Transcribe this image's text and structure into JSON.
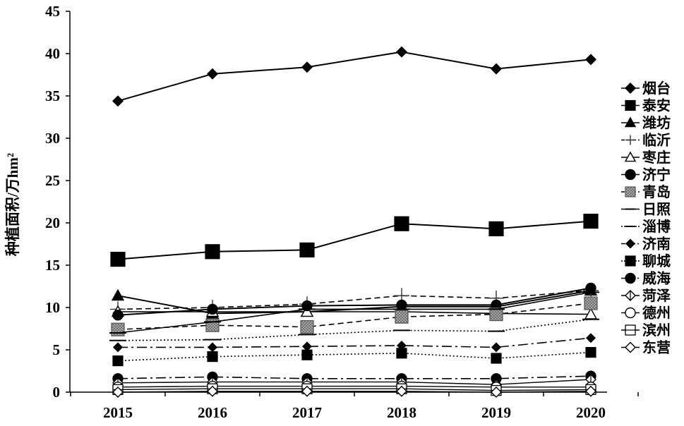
{
  "chart_data": {
    "type": "line",
    "ylabel": "种植面积/万hm²",
    "xlabel": "",
    "ylim": [
      0,
      45
    ],
    "yticks": [
      0,
      5,
      10,
      15,
      20,
      25,
      30,
      35,
      40,
      45
    ],
    "x": [
      "2015",
      "2016",
      "2017",
      "2018",
      "2019",
      "2020"
    ],
    "grid": false,
    "legend_position": "right",
    "series": [
      {
        "name": "烟台",
        "values": [
          34.4,
          37.6,
          38.4,
          40.2,
          38.2,
          39.3
        ],
        "marker": "diamond",
        "marker_fill": "#000000",
        "marker_size": 7,
        "dash": "solid",
        "stroke_width": 2
      },
      {
        "name": "泰安",
        "values": [
          15.7,
          16.6,
          16.8,
          19.9,
          19.3,
          20.2
        ],
        "marker": "square",
        "marker_fill": "#000000",
        "marker_size": 10,
        "dash": "solid",
        "stroke_width": 2
      },
      {
        "name": "潍坊",
        "values": [
          11.4,
          9.3,
          9.5,
          10.1,
          10.1,
          12.0
        ],
        "marker": "triangle",
        "marker_fill": "#000000",
        "marker_size": 8,
        "dash": "solid",
        "stroke_width": 2
      },
      {
        "name": "临沂",
        "values": [
          9.8,
          10.0,
          10.4,
          11.4,
          11.1,
          12.0
        ],
        "marker": "plus",
        "marker_fill": "#000000",
        "marker_size": 11,
        "dash": "dash",
        "stroke_width": 1.6
      },
      {
        "name": "枣庄",
        "values": [
          9.5,
          9.5,
          9.5,
          9.5,
          9.3,
          9.2
        ],
        "marker": "triangle-open",
        "marker_fill": "#ffffff",
        "marker_size": 8,
        "dash": "solid",
        "stroke_width": 1.6
      },
      {
        "name": "济宁",
        "values": [
          9.1,
          9.8,
          10.2,
          10.3,
          10.3,
          12.3
        ],
        "marker": "circle",
        "marker_fill": "#000000",
        "marker_size": 7,
        "dash": "solid",
        "stroke_width": 2
      },
      {
        "name": "青岛",
        "values": [
          7.4,
          7.9,
          7.7,
          8.9,
          9.2,
          10.5
        ],
        "marker": "square-hatch",
        "marker_fill": "#9a9a9a",
        "marker_size": 9,
        "dash": "dash",
        "stroke_width": 1.6
      },
      {
        "name": "日照",
        "values": [
          7.0,
          8.3,
          9.8,
          9.8,
          9.8,
          11.8
        ],
        "marker": "dash",
        "marker_fill": "#000000",
        "marker_size": 12,
        "dash": "solid",
        "stroke_width": 1.6
      },
      {
        "name": "淄博",
        "values": [
          6.1,
          6.2,
          6.8,
          7.3,
          7.2,
          8.6
        ],
        "marker": "dash",
        "marker_fill": "#000000",
        "marker_size": 12,
        "dash": "dot",
        "stroke_width": 1.6
      },
      {
        "name": "济南",
        "values": [
          5.3,
          5.3,
          5.4,
          5.5,
          5.3,
          6.4
        ],
        "marker": "diamond",
        "marker_fill": "#000000",
        "marker_size": 6,
        "dash": "dashdot",
        "stroke_width": 1.6
      },
      {
        "name": "聊城",
        "values": [
          3.7,
          4.2,
          4.4,
          4.6,
          4.0,
          4.7
        ],
        "marker": "square",
        "marker_fill": "#000000",
        "marker_size": 7,
        "dash": "dot",
        "stroke_width": 1.6
      },
      {
        "name": "威海",
        "values": [
          1.6,
          1.8,
          1.6,
          1.6,
          1.6,
          1.9
        ],
        "marker": "circle",
        "marker_fill": "#000000",
        "marker_size": 7,
        "dash": "dashdot",
        "stroke_width": 1.6
      },
      {
        "name": "菏泽",
        "values": [
          1.1,
          1.2,
          1.2,
          1.2,
          0.9,
          1.5
        ],
        "marker": "diamond-striped",
        "marker_fill": "#ffffff",
        "marker_size": 7,
        "dash": "solid",
        "stroke_width": 1.4
      },
      {
        "name": "德州",
        "values": [
          0.6,
          0.7,
          0.7,
          0.7,
          0.6,
          0.6
        ],
        "marker": "circle-open",
        "marker_fill": "#ffffff",
        "marker_size": 7,
        "dash": "solid",
        "stroke_width": 1.4
      },
      {
        "name": "滨州",
        "values": [
          0.3,
          0.4,
          0.4,
          0.4,
          0.2,
          0.3
        ],
        "marker": "square-lines",
        "marker_fill": "#ffffff",
        "marker_size": 7,
        "dash": "solid",
        "stroke_width": 1.4
      },
      {
        "name": "东营",
        "values": [
          0.0,
          0.1,
          0.1,
          0.1,
          0.0,
          0.1
        ],
        "marker": "diamond-open",
        "marker_fill": "#ffffff",
        "marker_size": 7,
        "dash": "solid",
        "stroke_width": 1.4
      }
    ]
  }
}
